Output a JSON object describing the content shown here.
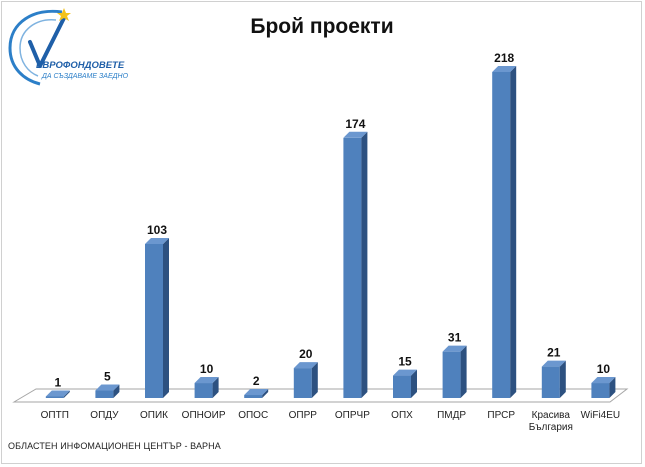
{
  "logo": {
    "line1": "ЕВРОФОНДОВЕТЕ",
    "line2": "ДА СЪЗДАВАМЕ ЗАЕДНО",
    "colors": {
      "blue": "#1f5fa8",
      "yellow": "#f2c21b",
      "ring": "#2c7fc8"
    }
  },
  "footer": {
    "text": "ОБЛАСТЕН ИНФОМАЦИОНЕН ЦЕНТЪР - ВАРНА"
  },
  "chart_data": {
    "type": "bar",
    "title": "Брой проекти",
    "categories": [
      [
        "ОПТП"
      ],
      [
        "ОПДУ"
      ],
      [
        "ОПИК"
      ],
      [
        "ОПНОИР"
      ],
      [
        "ОПОС"
      ],
      [
        "ОПРР"
      ],
      [
        "ОПРЧР"
      ],
      [
        "ОПХ"
      ],
      [
        "ПМДР"
      ],
      [
        "ПРСР"
      ],
      [
        "Красива",
        "България"
      ],
      [
        "WiFi4EU"
      ]
    ],
    "values": [
      1,
      5,
      103,
      10,
      2,
      20,
      174,
      15,
      31,
      218,
      21,
      10
    ],
    "ylim": [
      0,
      218
    ],
    "grid": false,
    "legend": "none",
    "data_labels": true,
    "colors": {
      "front": "#4f81bd",
      "side": "#2d5180",
      "top": "#6b97cf",
      "floor": "#ffffff",
      "floor_edge": "#a6a6a6"
    }
  }
}
